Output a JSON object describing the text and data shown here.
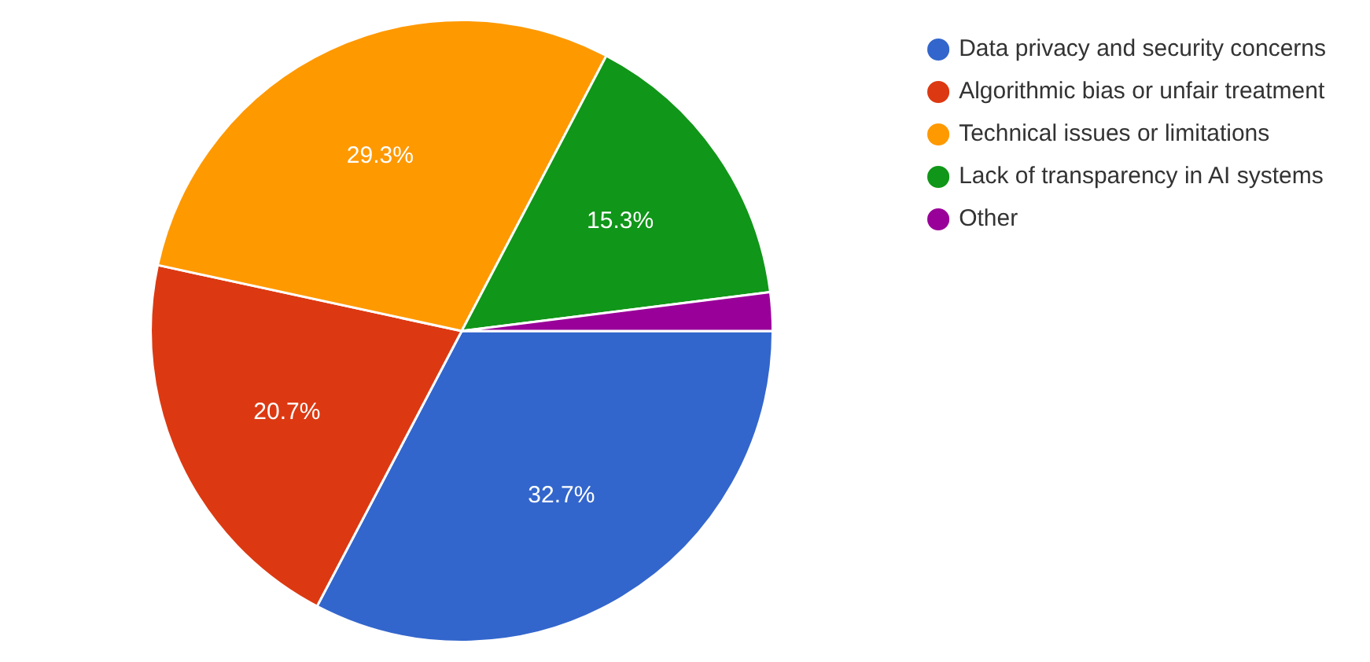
{
  "chart_data": {
    "type": "pie",
    "categories": [
      "Data privacy and security concerns",
      "Algorithmic bias or unfair treatment",
      "Technical issues or limitations",
      "Lack of transparency in AI systems",
      "Other"
    ],
    "values": [
      32.7,
      20.7,
      29.3,
      15.3,
      2.0
    ],
    "colors": [
      "#3366cc",
      "#dc3912",
      "#ff9900",
      "#109618",
      "#990099"
    ],
    "value_labels": [
      "32.7%",
      "20.7%",
      "29.3%",
      "15.3%",
      null
    ],
    "legend": "top right"
  }
}
